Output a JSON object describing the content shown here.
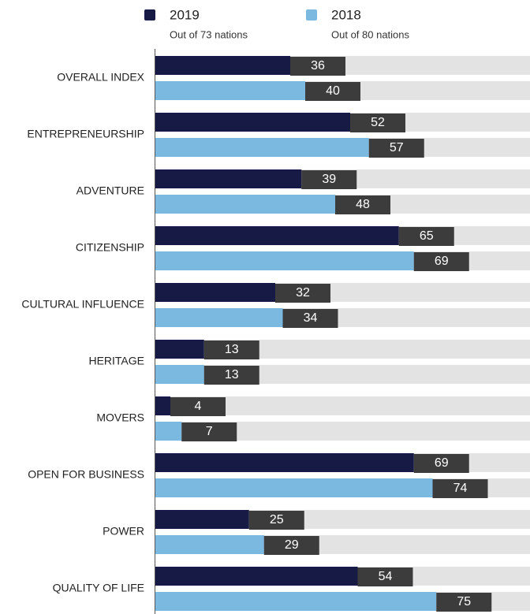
{
  "chart_data": {
    "type": "hbar",
    "categories": [
      "OVERALL INDEX",
      "ENTREPRENEURSHIP",
      "ADVENTURE",
      "CITIZENSHIP",
      "CULTURAL INFLUENCE",
      "HERITAGE",
      "MOVERS",
      "OPEN FOR BUSINESS",
      "POWER",
      "QUALITY OF LIFE"
    ],
    "series": [
      {
        "name": "2019",
        "subtitle": "Out of 73 nations",
        "color": "#161a44",
        "values": [
          36,
          52,
          39,
          65,
          32,
          13,
          4,
          69,
          25,
          54
        ]
      },
      {
        "name": "2018",
        "subtitle": "Out of 80 nations",
        "color": "#7cb9e0",
        "values": [
          40,
          57,
          48,
          69,
          34,
          13,
          7,
          74,
          29,
          75
        ]
      }
    ],
    "xlim": [
      0,
      100
    ],
    "track_color": "#e3e3e3",
    "label_box_color": "#3c3c3c"
  }
}
